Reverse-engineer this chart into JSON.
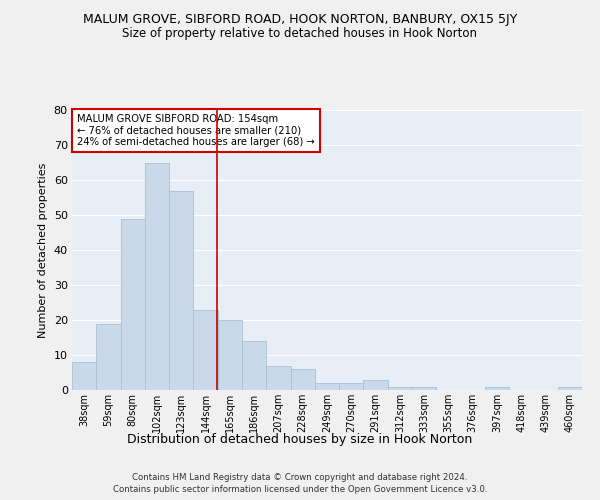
{
  "title": "MALUM GROVE, SIBFORD ROAD, HOOK NORTON, BANBURY, OX15 5JY",
  "subtitle": "Size of property relative to detached houses in Hook Norton",
  "xlabel": "Distribution of detached houses by size in Hook Norton",
  "ylabel": "Number of detached properties",
  "bar_values": [
    8,
    19,
    49,
    65,
    57,
    23,
    20,
    14,
    7,
    6,
    2,
    2,
    3,
    1,
    1,
    0,
    0,
    1,
    0,
    0,
    1
  ],
  "bar_labels": [
    "38sqm",
    "59sqm",
    "80sqm",
    "102sqm",
    "123sqm",
    "144sqm",
    "165sqm",
    "186sqm",
    "207sqm",
    "228sqm",
    "249sqm",
    "270sqm",
    "291sqm",
    "312sqm",
    "333sqm",
    "355sqm",
    "376sqm",
    "397sqm",
    "418sqm",
    "439sqm",
    "460sqm"
  ],
  "bar_color": "#c9d9ea",
  "bar_edge_color": "#a8c0d6",
  "ylim": [
    0,
    80
  ],
  "yticks": [
    0,
    10,
    20,
    30,
    40,
    50,
    60,
    70,
    80
  ],
  "red_line_x": 5.48,
  "annotation_text": "MALUM GROVE SIBFORD ROAD: 154sqm\n← 76% of detached houses are smaller (210)\n24% of semi-detached houses are larger (68) →",
  "annotation_box_color": "#ffffff",
  "annotation_box_edge": "#cc0000",
  "bg_color": "#e8eef6",
  "grid_color": "#ffffff",
  "fig_color": "#f0f0f0",
  "footer1": "Contains HM Land Registry data © Crown copyright and database right 2024.",
  "footer2": "Contains public sector information licensed under the Open Government Licence v3.0."
}
